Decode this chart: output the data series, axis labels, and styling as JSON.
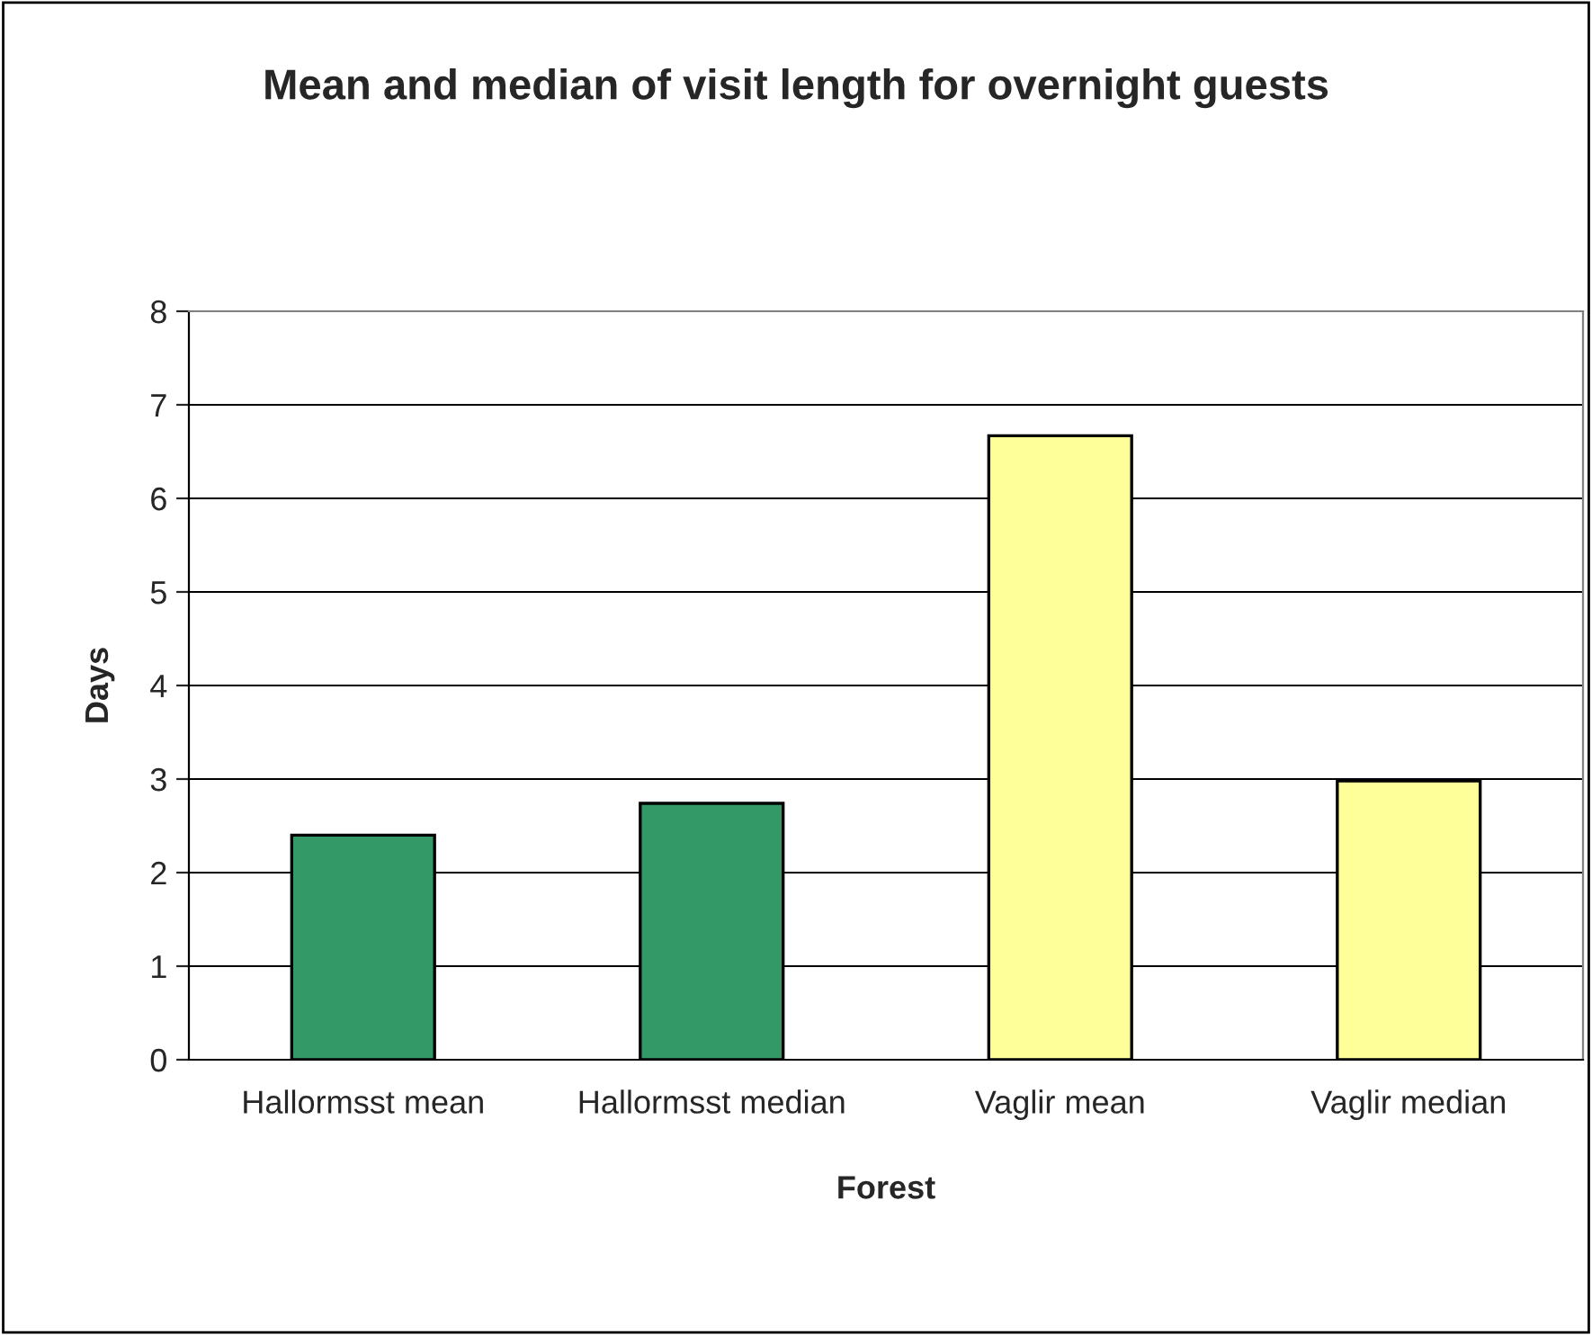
{
  "chart_data": {
    "type": "bar",
    "title": "Mean and median of visit length for overnight guests",
    "xlabel": "Forest",
    "ylabel": "Days",
    "categories": [
      "Hallormsst mean",
      "Hallormsst median",
      "Vaglir mean",
      "Vaglir median"
    ],
    "values": [
      2.4,
      2.74,
      6.67,
      2.98
    ],
    "colors": [
      "#339966",
      "#339966",
      "#ffff99",
      "#ffff99"
    ],
    "ylim": [
      0,
      8
    ],
    "yticks": [
      0,
      1,
      2,
      3,
      4,
      5,
      6,
      7,
      8
    ],
    "grid": "y",
    "legend": false
  }
}
